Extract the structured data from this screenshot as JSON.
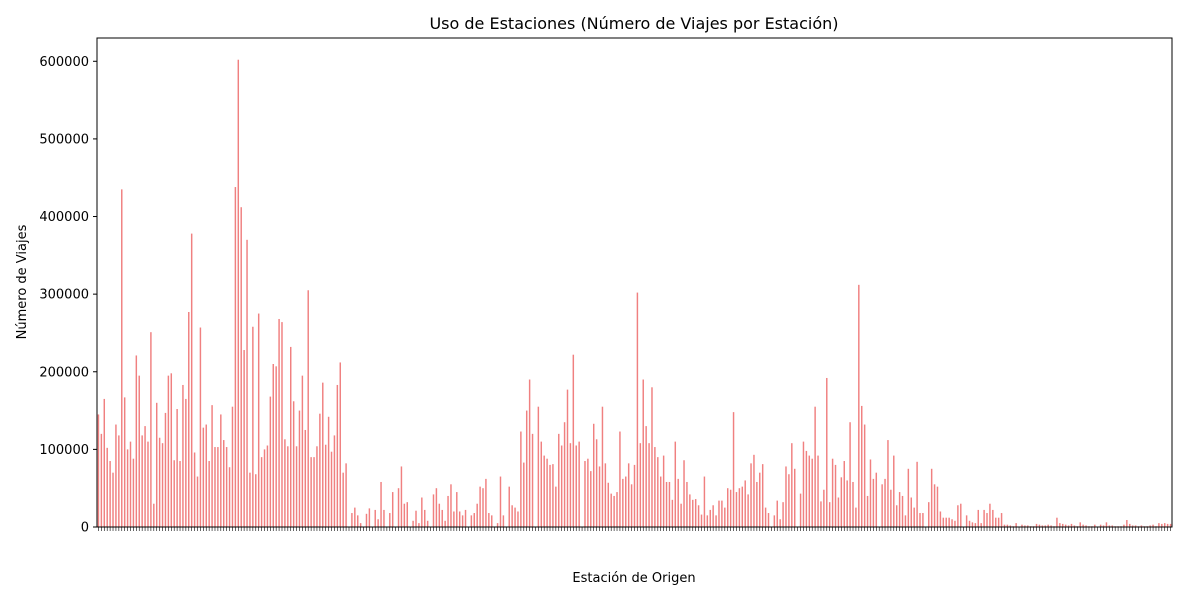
{
  "chart_data": {
    "type": "bar",
    "title": "Uso de Estaciones (Número de Viajes por Estación)",
    "xlabel": "Estación de Origen",
    "ylabel": "Número de Viajes",
    "ylim": [
      0,
      630000
    ],
    "yticks": [
      0,
      100000,
      200000,
      300000,
      400000,
      500000,
      600000
    ],
    "ytick_labels": [
      "0",
      "100000",
      "200000",
      "300000",
      "400000",
      "500000",
      "600000"
    ],
    "x_tick_labels_note": "x-axis category labels are illegible (rotated and overlapping)",
    "bar_color": "#f08080",
    "grid": false,
    "legend": "none",
    "values": [
      145000,
      120000,
      165000,
      102000,
      85000,
      70000,
      132000,
      118000,
      435000,
      167000,
      100000,
      110000,
      88000,
      221000,
      195000,
      118000,
      130000,
      110000,
      251000,
      30000,
      160000,
      115000,
      108000,
      147000,
      195000,
      198000,
      86000,
      152000,
      85000,
      183000,
      165000,
      277000,
      378000,
      96000,
      65000,
      257000,
      128000,
      132000,
      85000,
      157000,
      103000,
      103000,
      145000,
      112000,
      103000,
      77000,
      155000,
      438000,
      602000,
      412000,
      228000,
      370000,
      70000,
      258000,
      68000,
      275000,
      90000,
      100000,
      105000,
      168000,
      210000,
      207000,
      268000,
      264000,
      113000,
      104000,
      232000,
      162000,
      104000,
      150000,
      195000,
      125000,
      305000,
      90000,
      90000,
      104000,
      146000,
      186000,
      106000,
      142000,
      97000,
      118000,
      183000,
      212000,
      70000,
      82000,
      0,
      18000,
      25000,
      15000,
      5000,
      0,
      17000,
      24000,
      0,
      22000,
      10000,
      58000,
      22000,
      0,
      18000,
      45000,
      0,
      50000,
      78000,
      30000,
      32000,
      0,
      8000,
      21000,
      5000,
      38000,
      22000,
      8000,
      0,
      42000,
      50000,
      30000,
      22000,
      8000,
      40000,
      55000,
      20000,
      45000,
      20000,
      15000,
      22000,
      0,
      15000,
      18000,
      30000,
      52000,
      50000,
      62000,
      18000,
      15000,
      0,
      5000,
      65000,
      15000,
      0,
      52000,
      28000,
      25000,
      20000,
      123000,
      83000,
      150000,
      190000,
      120000,
      0,
      155000,
      110000,
      92000,
      88000,
      80000,
      81000,
      52000,
      120000,
      105000,
      135000,
      177000,
      108000,
      222000,
      105000,
      110000,
      0,
      85000,
      88000,
      72000,
      133000,
      113000,
      78000,
      155000,
      82000,
      57000,
      43000,
      40000,
      45000,
      123000,
      62000,
      65000,
      82000,
      55000,
      80000,
      302000,
      108000,
      190000,
      130000,
      108000,
      180000,
      103000,
      90000,
      65000,
      92000,
      58000,
      58000,
      35000,
      110000,
      62000,
      30000,
      86000,
      58000,
      42000,
      35000,
      36000,
      28000,
      16000,
      65000,
      15000,
      22000,
      28000,
      15000,
      34000,
      34000,
      25000,
      50000,
      48000,
      148000,
      45000,
      50000,
      52000,
      60000,
      42000,
      82000,
      93000,
      58000,
      70000,
      81000,
      25000,
      18000,
      0,
      15000,
      34000,
      10000,
      32000,
      78000,
      68000,
      108000,
      75000,
      0,
      43000,
      110000,
      98000,
      92000,
      88000,
      155000,
      92000,
      33000,
      48000,
      192000,
      32000,
      88000,
      80000,
      38000,
      64000,
      85000,
      60000,
      135000,
      58000,
      25000,
      312000,
      156000,
      132000,
      40000,
      87000,
      62000,
      70000,
      0,
      55000,
      62000,
      112000,
      48000,
      92000,
      28000,
      45000,
      40000,
      15000,
      75000,
      38000,
      25000,
      84000,
      18000,
      18000,
      0,
      32000,
      75000,
      55000,
      52000,
      20000,
      12000,
      12000,
      12000,
      10000,
      8000,
      28000,
      30000,
      0,
      15000,
      8000,
      6000,
      5000,
      22000,
      5000,
      22000,
      18000,
      30000,
      22000,
      12000,
      12000,
      18000,
      3000,
      3000,
      2000,
      1000,
      5000,
      0,
      3000,
      2000,
      2000,
      1000,
      1000,
      4000,
      3000,
      2000,
      2000,
      3000,
      2000,
      1000,
      12000,
      5000,
      4000,
      3000,
      2000,
      4000,
      2000,
      1000,
      6000,
      3000,
      2000,
      1000,
      1000,
      3000,
      0,
      3000,
      2000,
      6000,
      2000,
      2000,
      1000,
      1000,
      1000,
      3000,
      9000,
      4000,
      2000,
      2000,
      1000,
      2000,
      1000,
      1000,
      2000,
      3000,
      1000,
      5000,
      4000,
      5000,
      4000,
      4000
    ]
  }
}
